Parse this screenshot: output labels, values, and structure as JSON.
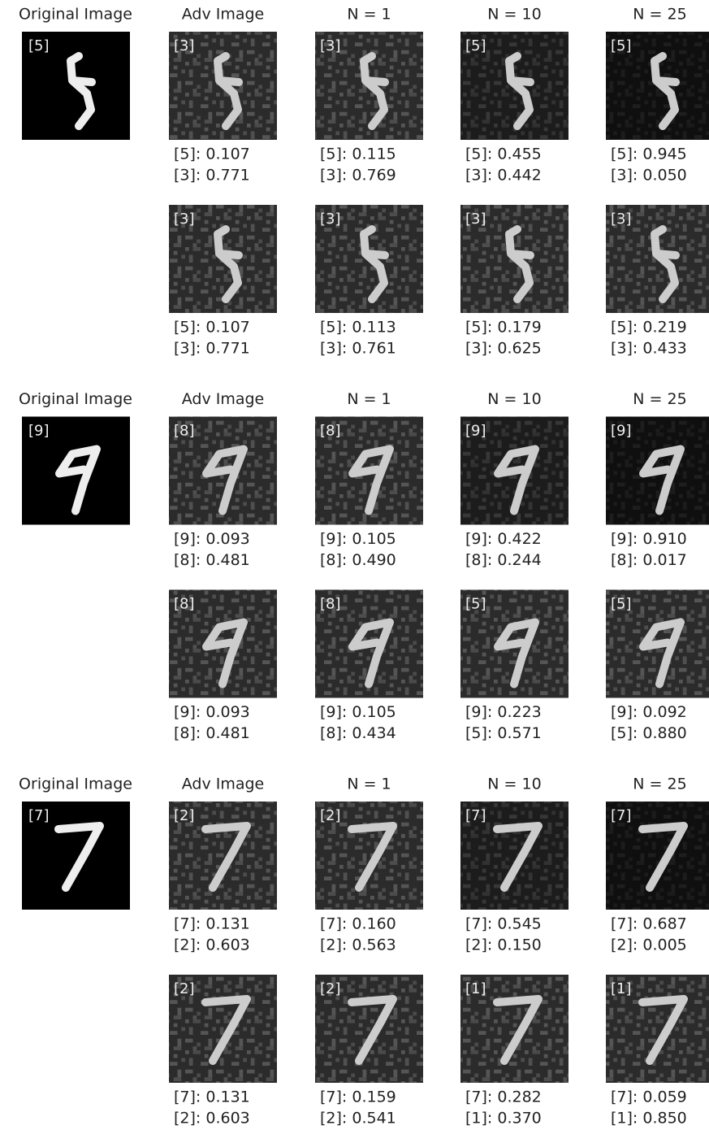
{
  "groups": [
    {
      "headers": [
        "Original Image",
        "Adv Image",
        "N = 1",
        "N = 10",
        "N = 25"
      ],
      "original_label": "[5]",
      "rows": [
        {
          "cells": [
            {
              "label": "[3]",
              "lines": [
                "[5]: 0.107",
                "[3]: 0.771"
              ]
            },
            {
              "label": "[3]",
              "lines": [
                "[5]: 0.115",
                "[3]: 0.769"
              ]
            },
            {
              "label": "[5]",
              "lines": [
                "[5]: 0.455",
                "[3]: 0.442"
              ]
            },
            {
              "label": "[5]",
              "lines": [
                "[5]: 0.945",
                "[3]: 0.050"
              ]
            }
          ]
        },
        {
          "cells": [
            {
              "label": "[3]",
              "lines": [
                "[5]: 0.107",
                "[3]: 0.771"
              ]
            },
            {
              "label": "[3]",
              "lines": [
                "[5]: 0.113",
                "[3]: 0.761"
              ]
            },
            {
              "label": "[3]",
              "lines": [
                "[5]: 0.179",
                "[3]: 0.625"
              ]
            },
            {
              "label": "[3]",
              "lines": [
                "[5]: 0.219",
                "[3]: 0.433"
              ]
            }
          ]
        }
      ]
    },
    {
      "headers": [
        "Original Image",
        "Adv Image",
        "N = 1",
        "N = 10",
        "N = 25"
      ],
      "original_label": "[9]",
      "rows": [
        {
          "cells": [
            {
              "label": "[8]",
              "lines": [
                "[9]: 0.093",
                "[8]: 0.481"
              ]
            },
            {
              "label": "[8]",
              "lines": [
                "[9]: 0.105",
                "[8]: 0.490"
              ]
            },
            {
              "label": "[9]",
              "lines": [
                "[9]: 0.422",
                "[8]: 0.244"
              ]
            },
            {
              "label": "[9]",
              "lines": [
                "[9]: 0.910",
                "[8]: 0.017"
              ]
            }
          ]
        },
        {
          "cells": [
            {
              "label": "[8]",
              "lines": [
                "[9]: 0.093",
                "[8]: 0.481"
              ]
            },
            {
              "label": "[8]",
              "lines": [
                "[9]: 0.105",
                "[8]: 0.434"
              ]
            },
            {
              "label": "[5]",
              "lines": [
                "[9]: 0.223",
                "[5]: 0.571"
              ]
            },
            {
              "label": "[5]",
              "lines": [
                "[9]: 0.092",
                "[5]: 0.880"
              ]
            }
          ]
        }
      ]
    },
    {
      "headers": [
        "Original Image",
        "Adv Image",
        "N = 1",
        "N = 10",
        "N = 25"
      ],
      "original_label": "[7]",
      "rows": [
        {
          "cells": [
            {
              "label": "[2]",
              "lines": [
                "[7]: 0.131",
                "[2]: 0.603"
              ]
            },
            {
              "label": "[2]",
              "lines": [
                "[7]: 0.160",
                "[2]: 0.563"
              ]
            },
            {
              "label": "[7]",
              "lines": [
                "[7]: 0.545",
                "[2]: 0.150"
              ]
            },
            {
              "label": "[7]",
              "lines": [
                "[7]: 0.687",
                "[2]: 0.005"
              ]
            }
          ]
        },
        {
          "cells": [
            {
              "label": "[2]",
              "lines": [
                "[7]: 0.131",
                "[2]: 0.603"
              ]
            },
            {
              "label": "[2]",
              "lines": [
                "[7]: 0.159",
                "[2]: 0.541"
              ]
            },
            {
              "label": "[1]",
              "lines": [
                "[7]: 0.282",
                "[1]: 0.370"
              ]
            },
            {
              "label": "[1]",
              "lines": [
                "[7]: 0.059",
                "[1]: 0.850"
              ]
            }
          ]
        }
      ]
    }
  ]
}
